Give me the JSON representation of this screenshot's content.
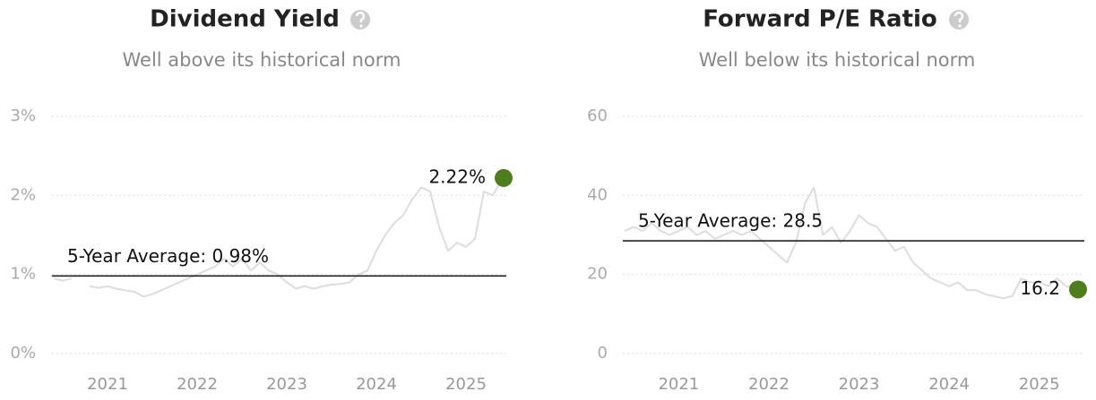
{
  "chart_data": [
    {
      "type": "line",
      "title": "Dividend Yield",
      "subtitle": "Well above its historical norm",
      "x": [
        2020.4,
        2020.5,
        2020.6,
        2020.7,
        2020.8,
        2020.9,
        2021.0,
        2021.1,
        2021.2,
        2021.3,
        2021.4,
        2021.5,
        2021.6,
        2021.7,
        2021.8,
        2021.9,
        2022.0,
        2022.1,
        2022.2,
        2022.3,
        2022.4,
        2022.5,
        2022.6,
        2022.7,
        2022.8,
        2022.9,
        2023.0,
        2023.1,
        2023.2,
        2023.3,
        2023.4,
        2023.5,
        2023.6,
        2023.7,
        2023.8,
        2023.9,
        2024.0,
        2024.1,
        2024.2,
        2024.3,
        2024.4,
        2024.5,
        2024.6,
        2024.7,
        2024.8,
        2024.9,
        2025.0,
        2025.1,
        2025.2,
        2025.3,
        2025.4
      ],
      "values": [
        0.95,
        0.92,
        0.95,
        null,
        0.85,
        0.83,
        0.85,
        0.82,
        0.8,
        0.78,
        0.72,
        0.75,
        0.8,
        0.85,
        0.9,
        0.95,
        1.0,
        1.05,
        1.1,
        1.2,
        1.1,
        1.2,
        1.05,
        1.15,
        1.05,
        1.0,
        0.9,
        0.82,
        0.85,
        0.82,
        0.85,
        0.87,
        0.88,
        0.9,
        1.0,
        1.05,
        1.3,
        1.5,
        1.65,
        1.75,
        1.95,
        2.1,
        2.05,
        1.6,
        1.3,
        1.4,
        1.35,
        1.45,
        2.05,
        2.0,
        2.2
      ],
      "color": "#dddddd",
      "xlim": [
        2020.38,
        2025.45
      ],
      "xticks": [
        2021,
        2022,
        2023,
        2024,
        2025
      ],
      "ylim": [
        0,
        3
      ],
      "yticks": [
        {
          "value": 0,
          "label": "0%"
        },
        {
          "value": 1,
          "label": "1%"
        },
        {
          "value": 2,
          "label": "2%"
        },
        {
          "value": 3,
          "label": "3%"
        }
      ],
      "grid": true,
      "average": {
        "value": 0.98,
        "label": "5-Year Average: 0.98%"
      },
      "current": {
        "x": 2025.42,
        "value": 2.22,
        "value_label": "2.22%",
        "color": "#4e7d1e"
      }
    },
    {
      "type": "line",
      "title": "Forward P/E Ratio",
      "subtitle": "Well below its historical norm",
      "x": [
        2020.4,
        2020.5,
        2020.6,
        2020.7,
        2020.8,
        2020.9,
        2021.0,
        2021.1,
        2021.2,
        2021.3,
        2021.4,
        2021.5,
        2021.6,
        2021.7,
        2021.8,
        2021.9,
        2022.0,
        2022.1,
        2022.2,
        2022.3,
        2022.4,
        2022.5,
        2022.6,
        2022.7,
        2022.8,
        2022.9,
        2023.0,
        2023.1,
        2023.2,
        2023.3,
        2023.4,
        2023.5,
        2023.6,
        2023.7,
        2023.8,
        2023.9,
        2024.0,
        2024.1,
        2024.2,
        2024.3,
        2024.4,
        2024.5,
        2024.6,
        2024.7,
        2024.8,
        2024.9,
        2025.0,
        2025.1,
        2025.2,
        2025.3,
        2025.4
      ],
      "values": [
        31,
        32,
        31,
        33,
        31,
        30,
        31,
        32,
        30,
        31,
        29,
        30,
        31,
        30,
        31,
        29,
        27,
        25,
        23,
        28,
        38,
        42,
        30,
        32,
        28,
        31,
        35,
        33,
        32,
        29,
        26,
        27,
        23,
        21,
        19,
        18,
        17,
        18,
        16,
        16,
        15,
        14.5,
        14,
        14.5,
        19,
        18,
        18,
        17,
        19,
        17,
        16.5
      ],
      "color": "#dddddd",
      "xlim": [
        2020.38,
        2025.5
      ],
      "xticks": [
        2021,
        2022,
        2023,
        2024,
        2025
      ],
      "ylim": [
        0,
        60
      ],
      "yticks": [
        0,
        20,
        40,
        60
      ],
      "grid": true,
      "average": {
        "value": 28.5,
        "label": "5-Year Average: 28.5"
      },
      "current": {
        "x": 2025.43,
        "value": 16.2,
        "value_label": "16.2",
        "color": "#4e7d1e"
      }
    }
  ]
}
